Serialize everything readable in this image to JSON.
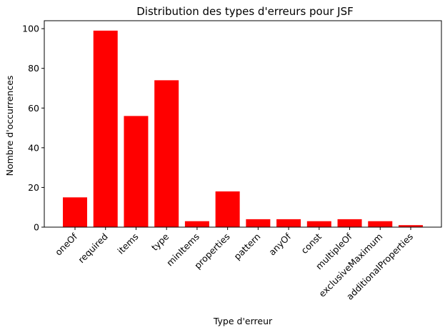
{
  "chart_data": {
    "type": "bar",
    "title": "Distribution des types d'erreurs pour JSF",
    "xlabel": "Type d'erreur",
    "ylabel": "Nombre d'occurrences",
    "categories": [
      "oneOf",
      "required",
      "items",
      "type",
      "minItems",
      "properties",
      "pattern",
      "anyOf",
      "const",
      "multipleOf",
      "exclusiveMaximum",
      "additionalProperties"
    ],
    "values": [
      15,
      99,
      56,
      74,
      3,
      18,
      4,
      4,
      3,
      4,
      3,
      1
    ],
    "ylim": [
      0,
      104
    ],
    "yticks": [
      "0",
      "20",
      "40",
      "60",
      "80",
      "100"
    ],
    "bar_color": "#ff0000",
    "grid": false,
    "legend": false
  }
}
